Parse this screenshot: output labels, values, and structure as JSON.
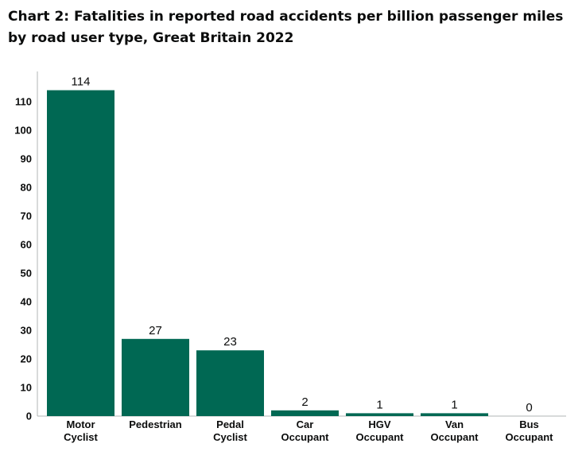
{
  "chart_data": {
    "type": "bar",
    "title": "Chart 2: Fatalities in reported road accidents per billion passenger miles by road user type, Great Britain 2022",
    "categories": [
      [
        "Motor",
        "Cyclist"
      ],
      [
        "Pedestrian"
      ],
      [
        "Pedal",
        "Cyclist"
      ],
      [
        "Car",
        "Occupant"
      ],
      [
        "HGV",
        "Occupant"
      ],
      [
        "Van",
        "Occupant"
      ],
      [
        "Bus",
        "Occupant"
      ]
    ],
    "values": [
      114,
      27,
      23,
      2,
      1,
      1,
      0
    ],
    "data_labels": [
      "114",
      "27",
      "23",
      "2",
      "1",
      "1",
      "0"
    ],
    "xlabel": "",
    "ylabel": "",
    "ylim": [
      0,
      120
    ],
    "yticks": [
      0,
      10,
      20,
      30,
      40,
      50,
      60,
      70,
      80,
      90,
      100,
      110
    ],
    "grid": false,
    "legend": "none",
    "bar_color": "#006853",
    "axis_color": "#b1b4b6"
  }
}
